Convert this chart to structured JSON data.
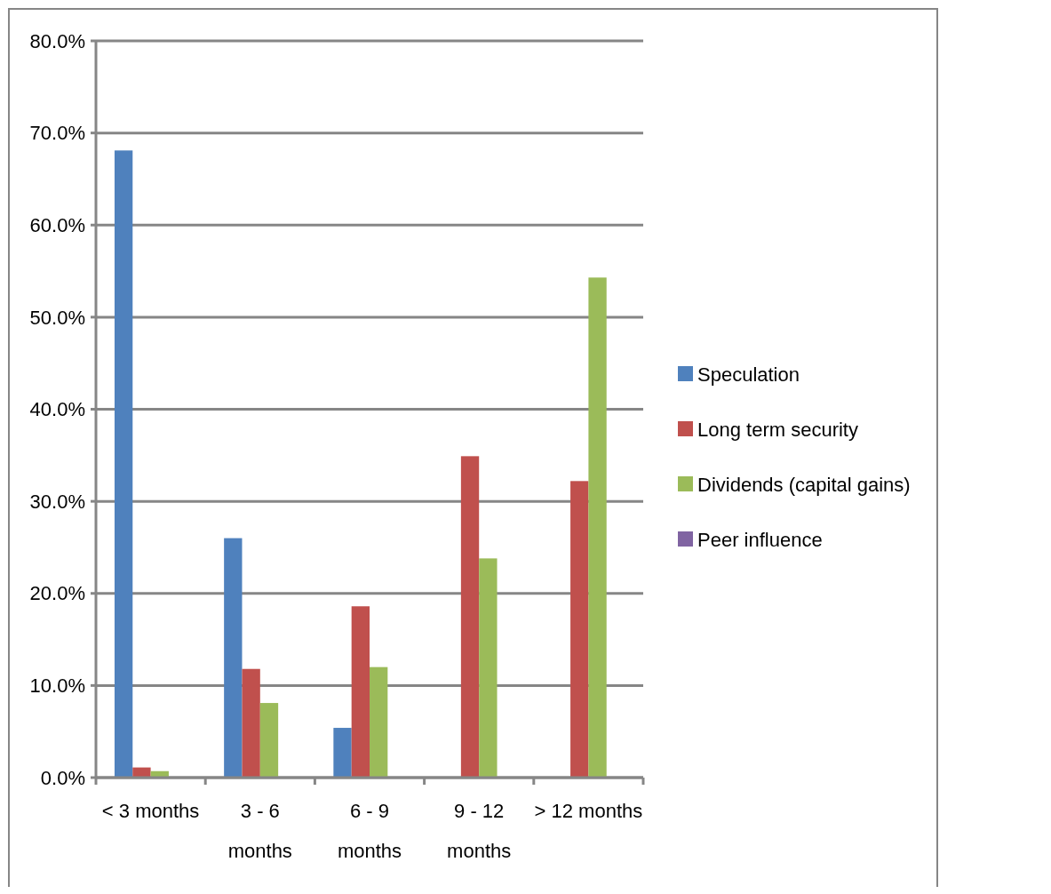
{
  "chart_data": {
    "type": "bar",
    "categories": [
      "< 3 months",
      "3 - 6 months",
      "6 - 9 months",
      "9 - 12 months",
      "> 12 months"
    ],
    "series": [
      {
        "name": "Speculation",
        "color": "#4f81bd",
        "values": [
          68.1,
          26.0,
          5.4,
          0,
          0
        ]
      },
      {
        "name": "Long term security",
        "color": "#c0504d",
        "values": [
          1.1,
          11.8,
          18.6,
          34.9,
          32.2
        ]
      },
      {
        "name": "Dividends (capital gains)",
        "color": "#9bbb59",
        "values": [
          0.7,
          8.1,
          12.0,
          23.8,
          54.3
        ]
      },
      {
        "name": "Peer influence",
        "color": "#8064a2",
        "values": [
          0,
          0,
          0,
          0,
          0
        ]
      }
    ],
    "ylim": [
      0,
      80
    ],
    "yticks": [
      {
        "value": 0,
        "label": "0.0%"
      },
      {
        "value": 10,
        "label": "10.0%"
      },
      {
        "value": 20,
        "label": "20.0%"
      },
      {
        "value": 30,
        "label": "30.0%"
      },
      {
        "value": 40,
        "label": "40.0%"
      },
      {
        "value": 50,
        "label": "50.0%"
      },
      {
        "value": 60,
        "label": "60.0%"
      },
      {
        "value": 70,
        "label": "70.0%"
      },
      {
        "value": 80,
        "label": "80.0%"
      }
    ],
    "grid": "y",
    "legend": "right"
  }
}
